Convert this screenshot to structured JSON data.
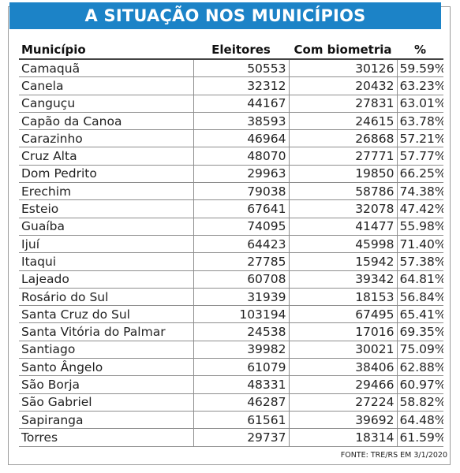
{
  "title": "A SITUAÇÃO NOS MUNICÍPIOS",
  "table": {
    "headers": [
      "Município",
      "Eleitores",
      "Com biometria",
      "%"
    ],
    "rows": [
      [
        "Camaquã",
        "50553",
        "30126",
        "59.59%"
      ],
      [
        "Canela",
        "32312",
        "20432",
        "63.23%"
      ],
      [
        "Canguçu",
        "44167",
        "27831",
        "63.01%"
      ],
      [
        "Capão da Canoa",
        "38593",
        "24615",
        "63.78%"
      ],
      [
        "Carazinho",
        "46964",
        "26868",
        "57.21%"
      ],
      [
        "Cruz Alta",
        "48070",
        "27771",
        "57.77%"
      ],
      [
        "Dom Pedrito",
        "29963",
        "19850",
        "66.25%"
      ],
      [
        "Erechim",
        "79038",
        "58786",
        "74.38%"
      ],
      [
        "Esteio",
        "67641",
        "32078",
        "47.42%"
      ],
      [
        "Guaíba",
        "74095",
        "41477",
        "55.98%"
      ],
      [
        "Ijuí",
        "64423",
        "45998",
        "71.40%"
      ],
      [
        "Itaqui",
        "27785",
        "15942",
        "57.38%"
      ],
      [
        "Lajeado",
        "60708",
        "39342",
        "64.81%"
      ],
      [
        "Rosário do Sul",
        "31939",
        "18153",
        "56.84%"
      ],
      [
        "Santa Cruz do Sul",
        "103194",
        "67495",
        "65.41%"
      ],
      [
        "Santa Vitória do Palmar",
        "24538",
        "17016",
        "69.35%"
      ],
      [
        "Santiago",
        "39982",
        "30021",
        "75.09%"
      ],
      [
        "Santo Ângelo",
        "61079",
        "38406",
        "62.88%"
      ],
      [
        "São Borja",
        "48331",
        "29466",
        "60.97%"
      ],
      [
        "São Gabriel",
        "46287",
        "27224",
        "58.82%"
      ],
      [
        "Sapiranga",
        "61561",
        "39692",
        "64.48%"
      ],
      [
        "Torres",
        "29737",
        "18314",
        "61.59%"
      ]
    ]
  },
  "source": "FONTE: TRE/RS EM 3/1/2020",
  "colors": {
    "banner": "#1c83c7",
    "banner_text": "#ffffff",
    "rule": "#8e8e8e"
  }
}
